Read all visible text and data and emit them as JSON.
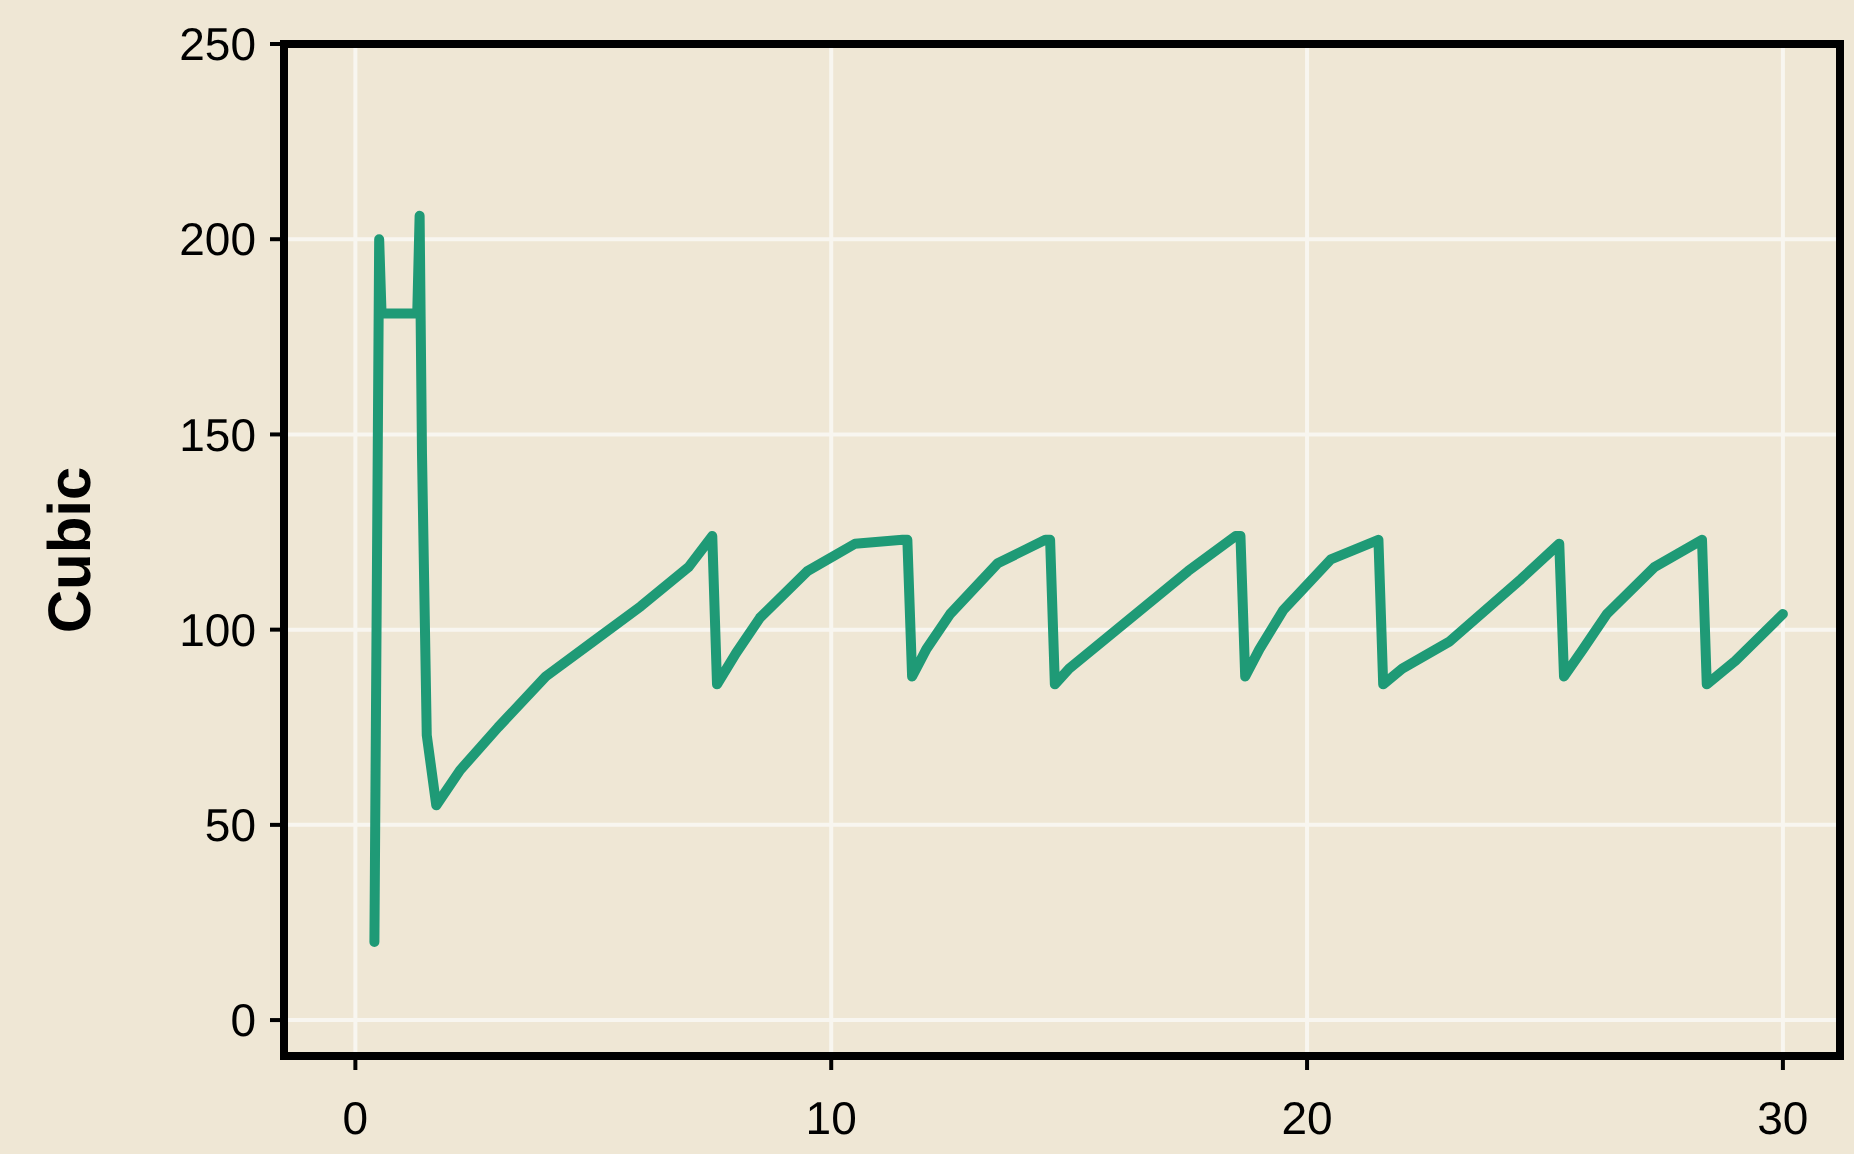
{
  "chart_data": {
    "type": "line",
    "ylabel": "Cubic",
    "xlim": [
      -1.5,
      31.2
    ],
    "ylim": [
      -9.2,
      250
    ],
    "xticks": [
      0,
      10,
      20,
      30
    ],
    "yticks": [
      0,
      50,
      100,
      150,
      200,
      250
    ],
    "grid": true,
    "series": [
      {
        "color": "#1f9a76",
        "x": [
          0.4,
          0.5,
          0.55,
          1.3,
          1.35,
          1.4,
          1.5,
          1.7,
          2.2,
          3,
          4,
          5,
          6,
          7,
          7.5,
          7.6,
          8,
          8.5,
          9.5,
          10.5,
          11.5,
          11.6,
          11.7,
          12,
          12.5,
          13.5,
          14.5,
          14.6,
          14.7,
          15,
          16,
          17.5,
          18.5,
          18.6,
          18.7,
          19,
          19.5,
          20.5,
          21.5,
          21.6,
          22,
          23,
          24.5,
          25.3,
          25.4,
          25.8,
          26.3,
          27.3,
          28.3,
          28.4,
          29,
          30
        ],
        "values": [
          20,
          200,
          181,
          181,
          206,
          145,
          73,
          55,
          64,
          75,
          88,
          97,
          106,
          116,
          124,
          86,
          94,
          103,
          115,
          122,
          123,
          123,
          88,
          95,
          104,
          117,
          123,
          123,
          86,
          90,
          100,
          115,
          124,
          124,
          88,
          95,
          105,
          118,
          123,
          86,
          90,
          97,
          113,
          122,
          88,
          95,
          104,
          116,
          123,
          86,
          92,
          104
        ]
      }
    ]
  }
}
